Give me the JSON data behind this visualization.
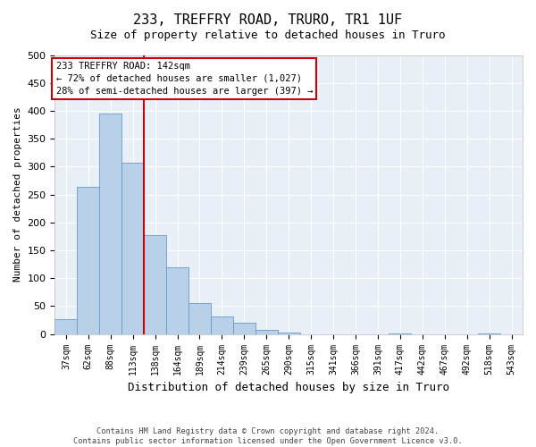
{
  "title": "233, TREFFRY ROAD, TRURO, TR1 1UF",
  "subtitle": "Size of property relative to detached houses in Truro",
  "xlabel": "Distribution of detached houses by size in Truro",
  "ylabel": "Number of detached properties",
  "footer_line1": "Contains HM Land Registry data © Crown copyright and database right 2024.",
  "footer_line2": "Contains public sector information licensed under the Open Government Licence v3.0.",
  "bar_color": "#b8d0e8",
  "bar_edge_color": "#6699cc",
  "background_color": "#e8eff7",
  "bin_labels": [
    "37sqm",
    "62sqm",
    "88sqm",
    "113sqm",
    "138sqm",
    "164sqm",
    "189sqm",
    "214sqm",
    "239sqm",
    "265sqm",
    "290sqm",
    "315sqm",
    "341sqm",
    "366sqm",
    "391sqm",
    "417sqm",
    "442sqm",
    "467sqm",
    "492sqm",
    "518sqm",
    "543sqm"
  ],
  "bar_values": [
    27,
    263,
    395,
    307,
    178,
    120,
    55,
    32,
    20,
    8,
    2,
    0,
    0,
    0,
    0,
    1,
    0,
    0,
    0,
    1,
    0
  ],
  "property_line_x": 3.5,
  "property_line_color": "#cc0000",
  "annotation_line1": "233 TREFFRY ROAD: 142sqm",
  "annotation_line2": "← 72% of detached houses are smaller (1,027)",
  "annotation_line3": "28% of semi-detached houses are larger (397) →",
  "annotation_box_edge_color": "#cc0000",
  "ylim": [
    0,
    500
  ],
  "yticks": [
    0,
    50,
    100,
    150,
    200,
    250,
    300,
    350,
    400,
    450,
    500
  ]
}
